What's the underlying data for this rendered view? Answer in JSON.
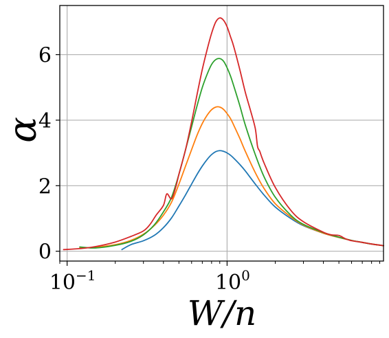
{
  "chart_data": {
    "type": "line",
    "xlabel": "W/n",
    "ylabel": "α",
    "xscale": "log",
    "xlim": [
      0.09,
      9.5
    ],
    "ylim": [
      -0.3,
      7.5
    ],
    "grid": true,
    "x_ticks": [
      {
        "value": 0.1,
        "label_base": "10",
        "label_exp": "−1"
      },
      {
        "value": 1,
        "label_base": "10",
        "label_exp": "0"
      }
    ],
    "y_ticks": [
      {
        "value": 0,
        "label": "0"
      },
      {
        "value": 2,
        "label": "2"
      },
      {
        "value": 4,
        "label": "4"
      },
      {
        "value": 6,
        "label": "6"
      }
    ],
    "series": [
      {
        "color": "#1f77b4",
        "x": [
          0.22,
          0.25,
          0.3,
          0.35,
          0.4,
          0.45,
          0.5,
          0.55,
          0.6,
          0.65,
          0.7,
          0.75,
          0.8,
          0.85,
          0.9,
          0.95,
          1.0,
          1.05,
          1.1,
          1.2,
          1.3,
          1.5,
          1.7,
          2.0,
          2.5,
          3.0,
          4.0,
          5.0,
          6.0,
          7.0,
          8.0,
          9.5
        ],
        "y": [
          0.05,
          0.2,
          0.32,
          0.48,
          0.72,
          1.02,
          1.38,
          1.72,
          2.05,
          2.35,
          2.6,
          2.8,
          2.95,
          3.04,
          3.07,
          3.05,
          3.0,
          2.93,
          2.84,
          2.65,
          2.45,
          2.05,
          1.72,
          1.35,
          1.0,
          0.78,
          0.55,
          0.42,
          0.33,
          0.27,
          0.22,
          0.17
        ]
      },
      {
        "color": "#ff7f0e",
        "x": [
          0.12,
          0.15,
          0.2,
          0.25,
          0.3,
          0.35,
          0.4,
          0.45,
          0.5,
          0.55,
          0.6,
          0.65,
          0.7,
          0.75,
          0.8,
          0.85,
          0.9,
          0.95,
          1.0,
          1.05,
          1.1,
          1.2,
          1.3,
          1.5,
          1.7,
          2.0,
          2.5,
          3.0,
          4.0,
          5.0,
          6.0,
          7.0,
          8.0,
          9.5
        ],
        "y": [
          0.1,
          0.12,
          0.2,
          0.33,
          0.52,
          0.78,
          1.1,
          1.5,
          2.05,
          2.6,
          3.1,
          3.55,
          3.9,
          4.15,
          4.32,
          4.4,
          4.4,
          4.33,
          4.2,
          4.05,
          3.85,
          3.45,
          3.05,
          2.4,
          1.92,
          1.45,
          1.05,
          0.8,
          0.55,
          0.42,
          0.33,
          0.27,
          0.22,
          0.17
        ]
      },
      {
        "color": "#2ca02c",
        "x": [
          0.12,
          0.15,
          0.2,
          0.25,
          0.3,
          0.35,
          0.4,
          0.45,
          0.5,
          0.55,
          0.6,
          0.65,
          0.7,
          0.75,
          0.8,
          0.85,
          0.9,
          0.95,
          1.0,
          1.05,
          1.1,
          1.2,
          1.3,
          1.5,
          1.7,
          2.0,
          2.5,
          3.0,
          4.0,
          5.0,
          6.0,
          7.0,
          8.0,
          9.5
        ],
        "y": [
          0.13,
          0.1,
          0.18,
          0.3,
          0.5,
          0.8,
          1.2,
          1.65,
          2.35,
          3.1,
          3.8,
          4.45,
          5.0,
          5.4,
          5.7,
          5.85,
          5.88,
          5.8,
          5.6,
          5.35,
          5.05,
          4.45,
          3.85,
          2.95,
          2.28,
          1.65,
          1.1,
          0.82,
          0.57,
          0.43,
          0.33,
          0.27,
          0.22,
          0.17
        ]
      },
      {
        "color": "#d62728",
        "x": [
          0.095,
          0.12,
          0.15,
          0.2,
          0.25,
          0.3,
          0.33,
          0.36,
          0.4,
          0.42,
          0.45,
          0.48,
          0.5,
          0.55,
          0.6,
          0.65,
          0.7,
          0.75,
          0.8,
          0.85,
          0.9,
          0.95,
          1.0,
          1.05,
          1.1,
          1.2,
          1.3,
          1.4,
          1.5,
          1.55,
          1.6,
          1.7,
          2.0,
          2.5,
          3.0,
          4.0,
          4.5,
          5.0,
          5.5,
          6.0,
          7.0,
          8.0,
          9.5
        ],
        "y": [
          0.05,
          0.08,
          0.14,
          0.28,
          0.45,
          0.62,
          0.82,
          1.1,
          1.4,
          1.75,
          1.6,
          2.0,
          2.35,
          3.1,
          3.95,
          4.8,
          5.55,
          6.15,
          6.65,
          7.0,
          7.12,
          7.05,
          6.85,
          6.55,
          6.25,
          5.55,
          4.85,
          4.3,
          3.75,
          3.2,
          3.05,
          2.7,
          1.95,
          1.25,
          0.9,
          0.58,
          0.5,
          0.48,
          0.38,
          0.32,
          0.27,
          0.22,
          0.17
        ]
      }
    ]
  }
}
